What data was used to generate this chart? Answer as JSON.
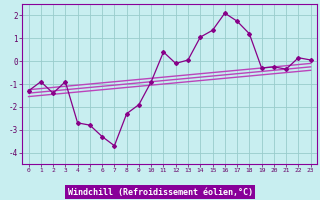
{
  "x": [
    0,
    1,
    2,
    3,
    4,
    5,
    6,
    7,
    8,
    9,
    10,
    11,
    12,
    13,
    14,
    15,
    16,
    17,
    18,
    19,
    20,
    21,
    22,
    23
  ],
  "y_main": [
    -1.3,
    -0.9,
    -1.4,
    -0.9,
    -2.7,
    -2.8,
    -3.3,
    -3.7,
    -2.3,
    -1.9,
    -0.9,
    0.4,
    -0.1,
    0.05,
    1.05,
    1.35,
    2.1,
    1.75,
    1.2,
    -0.3,
    -0.25,
    -0.35,
    0.15,
    0.05
  ],
  "y_reg1": [
    -1.25,
    -1.2,
    -1.15,
    -1.1,
    -1.05,
    -1.0,
    -0.95,
    -0.9,
    -0.85,
    -0.8,
    -0.75,
    -0.7,
    -0.65,
    -0.6,
    -0.55,
    -0.5,
    -0.45,
    -0.4,
    -0.35,
    -0.3,
    -0.25,
    -0.2,
    -0.15,
    -0.1
  ],
  "y_reg2": [
    -1.4,
    -1.35,
    -1.3,
    -1.25,
    -1.2,
    -1.15,
    -1.1,
    -1.05,
    -1.0,
    -0.95,
    -0.9,
    -0.85,
    -0.8,
    -0.75,
    -0.7,
    -0.65,
    -0.6,
    -0.55,
    -0.5,
    -0.45,
    -0.4,
    -0.35,
    -0.3,
    -0.25
  ],
  "y_reg3": [
    -1.55,
    -1.5,
    -1.45,
    -1.4,
    -1.35,
    -1.3,
    -1.25,
    -1.2,
    -1.15,
    -1.1,
    -1.05,
    -1.0,
    -0.95,
    -0.9,
    -0.85,
    -0.8,
    -0.75,
    -0.7,
    -0.65,
    -0.6,
    -0.55,
    -0.5,
    -0.45,
    -0.4
  ],
  "color_main": "#880088",
  "color_reg": "#bb44bb",
  "bg_color": "#c8eef0",
  "grid_color": "#99cccc",
  "tick_color": "#660066",
  "border_color": "#880099",
  "xlabel": "Windchill (Refroidissement éolien,°C)",
  "xlabel_bg": "#880099",
  "xlabel_fg": "#ffffff",
  "ylim": [
    -4.5,
    2.5
  ],
  "xlim": [
    -0.5,
    23.5
  ],
  "yticks": [
    -4,
    -3,
    -2,
    -1,
    0,
    1,
    2
  ],
  "xticks": [
    0,
    1,
    2,
    3,
    4,
    5,
    6,
    7,
    8,
    9,
    10,
    11,
    12,
    13,
    14,
    15,
    16,
    17,
    18,
    19,
    20,
    21,
    22,
    23
  ]
}
